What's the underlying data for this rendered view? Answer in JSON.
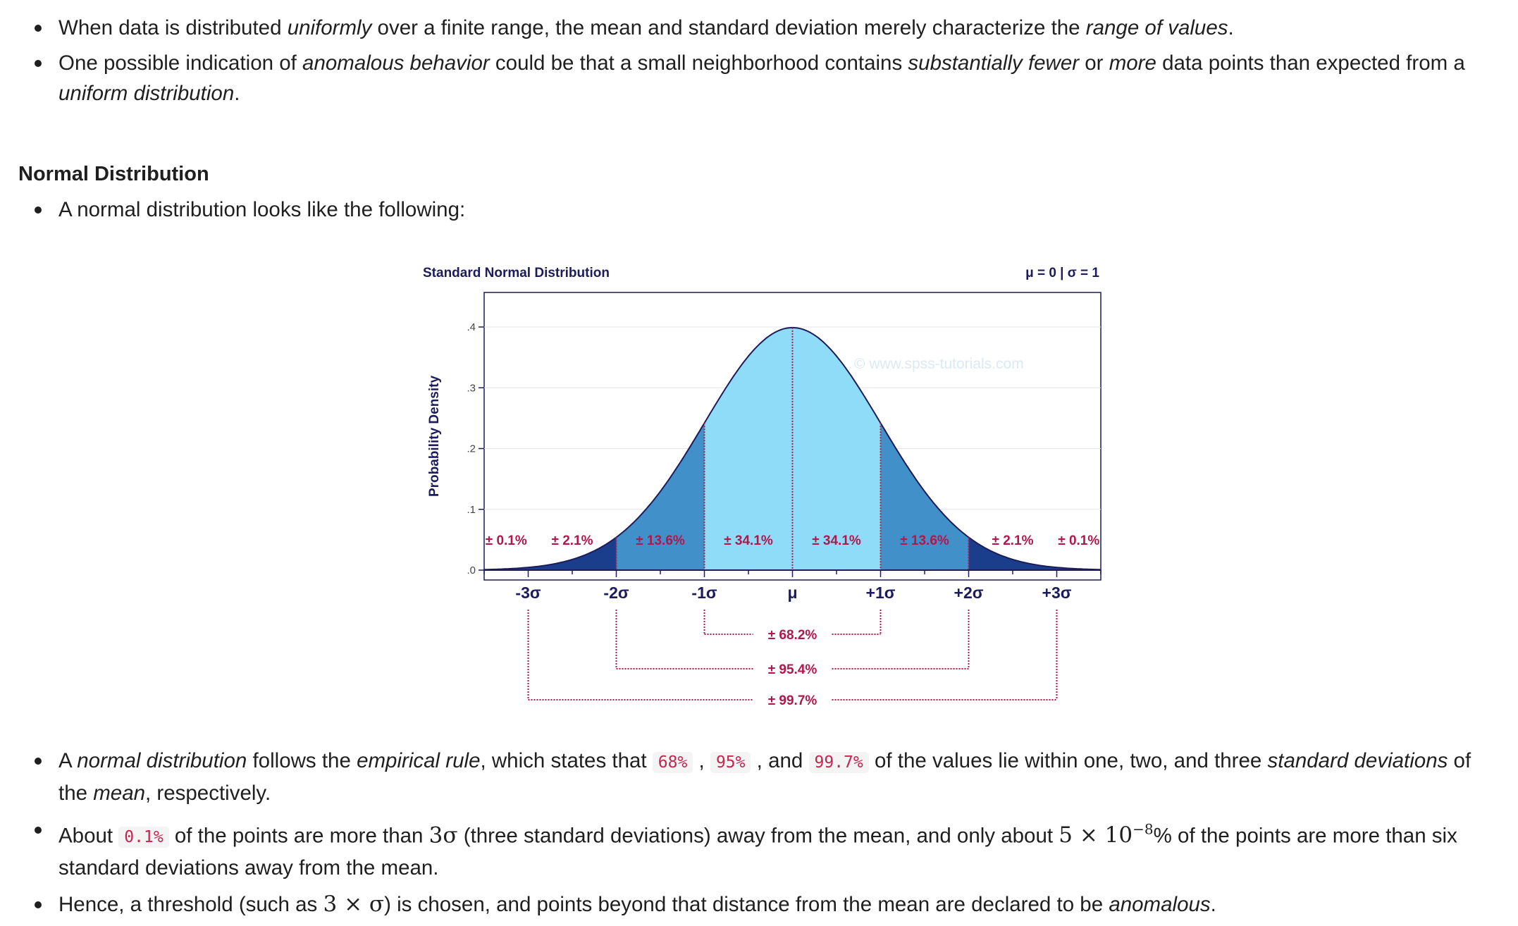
{
  "intro_bullets": [
    [
      {
        "t": "When data is distributed "
      },
      {
        "t": "uniformly",
        "em": true
      },
      {
        "t": " over a finite range, the mean and standard deviation merely characterize the "
      },
      {
        "t": "range of values",
        "em": true
      },
      {
        "t": "."
      }
    ],
    [
      {
        "t": "One possible indication of "
      },
      {
        "t": "anomalous behavior",
        "em": true
      },
      {
        "t": " could be that a small neighborhood contains "
      },
      {
        "t": "substantially fewer",
        "em": true
      },
      {
        "t": " or "
      },
      {
        "t": "more",
        "em": true
      },
      {
        "t": " data points than expected from a "
      },
      {
        "t": "uniform distribution",
        "em": true
      },
      {
        "t": "."
      }
    ]
  ],
  "section_heading": "Normal Distribution",
  "normal_bullets": [
    [
      {
        "t": "A normal distribution looks like the following:"
      }
    ]
  ],
  "chart_data": {
    "type": "area",
    "title": "Standard Normal Distribution",
    "subtitle": "μ = 0 | σ = 1",
    "ylabel": "Probability Density",
    "xlabel": "",
    "watermark": "© www.spss-tutorials.com",
    "xlim": [
      -3.5,
      3.5
    ],
    "ylim": [
      0,
      0.45
    ],
    "y_ticks": [
      {
        "value": 0,
        "label": ".0"
      },
      {
        "value": 0.1,
        "label": ".1"
      },
      {
        "value": 0.2,
        "label": ".2"
      },
      {
        "value": 0.3,
        "label": ".3"
      },
      {
        "value": 0.4,
        "label": ".4"
      }
    ],
    "x_ticks": [
      {
        "value": -3,
        "label": "-3σ"
      },
      {
        "value": -2,
        "label": "-2σ"
      },
      {
        "value": -1,
        "label": "-1σ"
      },
      {
        "value": 0,
        "label": "μ"
      },
      {
        "value": 1,
        "label": "+1σ"
      },
      {
        "value": 2,
        "label": "+2σ"
      },
      {
        "value": 3,
        "label": "+3σ"
      }
    ],
    "regions": [
      {
        "from": -3.5,
        "to": -3,
        "label": "± 0.1%",
        "color": "#1b3e8c"
      },
      {
        "from": -3,
        "to": -2,
        "label": "± 2.1%",
        "color": "#1b3e8c"
      },
      {
        "from": -2,
        "to": -1,
        "label": "± 13.6%",
        "color": "#4190c9"
      },
      {
        "from": -1,
        "to": 0,
        "label": "± 34.1%",
        "color": "#8fdcf8"
      },
      {
        "from": 0,
        "to": 1,
        "label": "± 34.1%",
        "color": "#8fdcf8"
      },
      {
        "from": 1,
        "to": 2,
        "label": "± 13.6%",
        "color": "#4190c9"
      },
      {
        "from": 2,
        "to": 3,
        "label": "± 2.1%",
        "color": "#1b3e8c"
      },
      {
        "from": 3,
        "to": 3.5,
        "label": "± 0.1%",
        "color": "#1b3e8c"
      }
    ],
    "brackets": [
      {
        "sigma": 1,
        "label": "± 68.2%"
      },
      {
        "sigma": 2,
        "label": "± 95.4%"
      },
      {
        "sigma": 3,
        "label": "± 99.7%"
      }
    ],
    "colors": {
      "title": "#1c1c5c",
      "label": "#b0184c",
      "frame": "#1c1c5c",
      "curve": "#1c1c5c"
    },
    "grid": true
  },
  "bottom_bullets": [
    [
      {
        "t": "A "
      },
      {
        "t": "normal distribution",
        "em": true
      },
      {
        "t": " follows the "
      },
      {
        "t": "empirical rule",
        "em": true
      },
      {
        "t": ", which states that "
      },
      {
        "t": "68%",
        "code": true
      },
      {
        "t": " , "
      },
      {
        "t": "95%",
        "code": true
      },
      {
        "t": " , and "
      },
      {
        "t": "99.7%",
        "code": true
      },
      {
        "t": " of the values lie within one, two, and three "
      },
      {
        "t": "standard deviations",
        "em": true
      },
      {
        "t": " of the "
      },
      {
        "t": "mean",
        "em": true
      },
      {
        "t": ", respectively."
      }
    ],
    [
      {
        "t": "About "
      },
      {
        "t": "0.1%",
        "code": true
      },
      {
        "t": " of the points are more than "
      },
      {
        "t": "3σ",
        "math": true
      },
      {
        "t": " (three standard deviations) away from the mean, and only about "
      },
      {
        "t": "5 × 10",
        "math": true
      },
      {
        "t": "−8",
        "sup": true
      },
      {
        "t": "% of the points are more than six standard deviations away from the mean."
      }
    ],
    [
      {
        "t": "Hence, a threshold (such as "
      },
      {
        "t": "3 × σ",
        "math": true
      },
      {
        "t": ") is chosen, and points beyond that distance from the mean are declared to be "
      },
      {
        "t": "anomalous",
        "em": true
      },
      {
        "t": "."
      }
    ]
  ]
}
